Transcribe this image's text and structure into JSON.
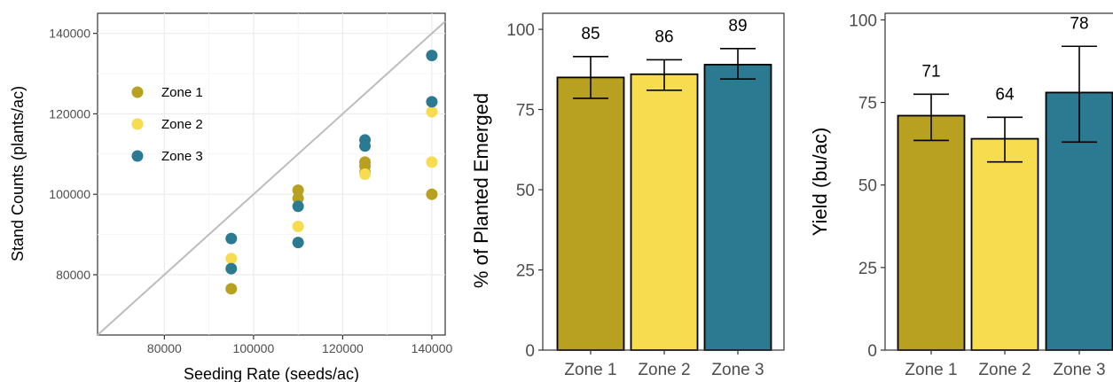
{
  "colors": {
    "zone1": "#B8A020",
    "zone2": "#F8DC50",
    "zone3": "#2B7A92",
    "diagonal": "#BDBDBD",
    "grid": "#EBEBEB",
    "axis": "#333333"
  },
  "chart_data": [
    {
      "type": "scatter",
      "title": "",
      "xlabel": "Seeding Rate (seeds/ac)",
      "ylabel": "Stand Counts (plants/ac)",
      "xlim": [
        65000,
        143000
      ],
      "ylim": [
        65000,
        145000
      ],
      "xticks": [
        80000,
        100000,
        120000,
        140000
      ],
      "yticks": [
        80000,
        100000,
        120000,
        140000
      ],
      "grid": true,
      "legend_position": "left-upper",
      "reference_line": "y = x",
      "series": [
        {
          "name": "Zone 1",
          "color_key": "zone1",
          "points": [
            [
              95000,
              76500
            ],
            [
              110000,
              99000
            ],
            [
              110000,
              101000
            ],
            [
              125000,
              105500
            ],
            [
              125000,
              107000
            ],
            [
              125000,
              108000
            ],
            [
              140000,
              100000
            ]
          ]
        },
        {
          "name": "Zone 2",
          "color_key": "zone2",
          "points": [
            [
              95000,
              84000
            ],
            [
              110000,
              92000
            ],
            [
              125000,
              105000
            ],
            [
              140000,
              108000
            ],
            [
              140000,
              120500
            ]
          ]
        },
        {
          "name": "Zone 3",
          "color_key": "zone3",
          "points": [
            [
              95000,
              89000
            ],
            [
              95000,
              81500
            ],
            [
              110000,
              97000
            ],
            [
              110000,
              88000
            ],
            [
              125000,
              112000
            ],
            [
              125000,
              113500
            ],
            [
              140000,
              123000
            ],
            [
              140000,
              134500
            ]
          ]
        }
      ]
    },
    {
      "type": "bar",
      "title": "",
      "xlabel": "",
      "ylabel": "% of Planted Emerged",
      "ylim": [
        0,
        105
      ],
      "yticks": [
        0,
        25,
        50,
        75,
        100
      ],
      "grid": false,
      "categories": [
        "Zone 1",
        "Zone 2",
        "Zone 3"
      ],
      "values": [
        85,
        86,
        89
      ],
      "data_labels": [
        "85",
        "86",
        "89"
      ],
      "error_low": [
        78.5,
        81,
        84.5
      ],
      "error_high": [
        91.5,
        90.5,
        94
      ],
      "color_keys": [
        "zone1",
        "zone2",
        "zone3"
      ]
    },
    {
      "type": "bar",
      "title": "",
      "xlabel": "",
      "ylabel": "Yield (bu/ac)",
      "ylim": [
        0,
        102
      ],
      "yticks": [
        0,
        25,
        50,
        75,
        100
      ],
      "grid": false,
      "categories": [
        "Zone 1",
        "Zone 2",
        "Zone 3"
      ],
      "values": [
        71,
        64,
        78
      ],
      "data_labels": [
        "71",
        "64",
        "78"
      ],
      "error_low": [
        63.5,
        57,
        63
      ],
      "error_high": [
        77.5,
        70.5,
        92
      ],
      "color_keys": [
        "zone1",
        "zone2",
        "zone3"
      ]
    }
  ]
}
